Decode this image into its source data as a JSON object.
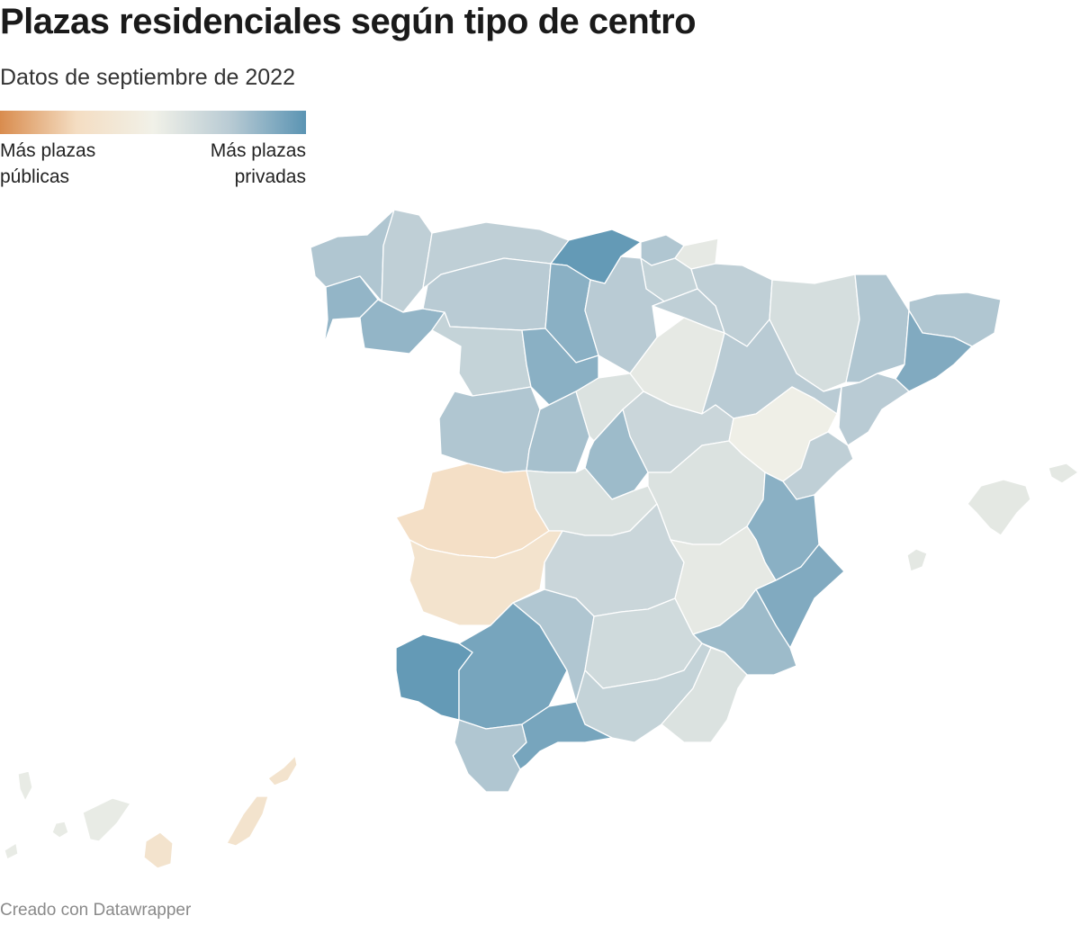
{
  "header": {
    "title": "Plazas residenciales según tipo de centro",
    "subtitle": "Datos de septiembre de 2022"
  },
  "legend": {
    "left_line1": "Más plazas",
    "left_line2": "públicas",
    "right_line1": "Más plazas",
    "right_line2": "privadas",
    "gradient_colors": [
      "#d98c4e",
      "#f4ddc2",
      "#f1f1e8",
      "#b9cbd4",
      "#5b94b3"
    ]
  },
  "map": {
    "projection_note": "Provincias de España",
    "provinces": [
      {
        "id": "coruna",
        "value": 0.55
      },
      {
        "id": "lugo",
        "value": 0.45
      },
      {
        "id": "asturias",
        "value": 0.45
      },
      {
        "id": "cantabria",
        "value": 0.95
      },
      {
        "id": "vizcaya",
        "value": 0.55
      },
      {
        "id": "guipuzcoa",
        "value": 0.1
      },
      {
        "id": "alava",
        "value": 0.4
      },
      {
        "id": "navarra",
        "value": 0.45
      },
      {
        "id": "pontevedra",
        "value": 0.7
      },
      {
        "id": "orense",
        "value": 0.7
      },
      {
        "id": "leon",
        "value": 0.5
      },
      {
        "id": "palencia",
        "value": 0.75
      },
      {
        "id": "burgos",
        "value": 0.5
      },
      {
        "id": "larioja",
        "value": 0.45
      },
      {
        "id": "huesca",
        "value": 0.25
      },
      {
        "id": "lleida",
        "value": 0.55
      },
      {
        "id": "girona",
        "value": 0.55
      },
      {
        "id": "barcelona",
        "value": 0.8
      },
      {
        "id": "zamora",
        "value": 0.4
      },
      {
        "id": "valladolid",
        "value": 0.75
      },
      {
        "id": "soria",
        "value": 0.1
      },
      {
        "id": "zaragoza",
        "value": 0.5
      },
      {
        "id": "tarragona",
        "value": 0.5
      },
      {
        "id": "salamanca",
        "value": 0.55
      },
      {
        "id": "avila",
        "value": 0.6
      },
      {
        "id": "segovia",
        "value": 0.2
      },
      {
        "id": "guadalajara",
        "value": 0.35
      },
      {
        "id": "teruel",
        "value": 0.02
      },
      {
        "id": "castellon",
        "value": 0.45
      },
      {
        "id": "caceres",
        "value": -0.45
      },
      {
        "id": "madrid",
        "value": 0.65
      },
      {
        "id": "toledo",
        "value": 0.2
      },
      {
        "id": "cuenca",
        "value": 0.2
      },
      {
        "id": "valencia",
        "value": 0.75
      },
      {
        "id": "badajoz",
        "value": -0.35
      },
      {
        "id": "ciudadreal",
        "value": 0.35
      },
      {
        "id": "albacete",
        "value": 0.1
      },
      {
        "id": "alicante",
        "value": 0.8
      },
      {
        "id": "murcia",
        "value": 0.65
      },
      {
        "id": "huelva",
        "value": 0.95
      },
      {
        "id": "sevilla",
        "value": 0.85
      },
      {
        "id": "cordoba",
        "value": 0.55
      },
      {
        "id": "jaen",
        "value": 0.3
      },
      {
        "id": "granada",
        "value": 0.4
      },
      {
        "id": "almeria",
        "value": 0.2
      },
      {
        "id": "cadiz",
        "value": 0.55
      },
      {
        "id": "malaga",
        "value": 0.85
      },
      {
        "id": "baleares",
        "value": 0.12
      },
      {
        "id": "tenerife",
        "value": 0.08
      },
      {
        "id": "laspalmas",
        "value": -0.35
      }
    ]
  },
  "footer": {
    "credit": "Creado con Datawrapper"
  }
}
